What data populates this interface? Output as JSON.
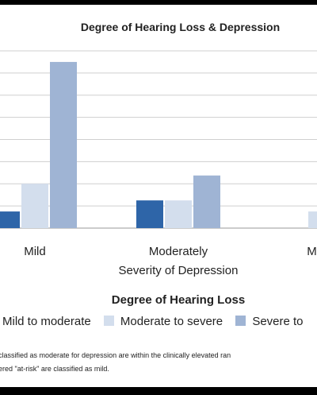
{
  "chart_data": {
    "type": "bar",
    "title": "Degree of Hearing Loss & Depression",
    "xlabel": "Severity of Depression",
    "ylabel": "",
    "categories": [
      "Mild",
      "Moderately",
      "Mode"
    ],
    "series": [
      {
        "name": "Mild to moderate",
        "color": "#2e65a8",
        "values": [
          3,
          5,
          null
        ]
      },
      {
        "name": "Moderate to severe",
        "color": "#d3deed",
        "values": [
          8,
          5,
          3
        ]
      },
      {
        "name": "Severe to",
        "color": "#9fb4d4",
        "values": [
          30,
          9.5,
          null
        ]
      }
    ],
    "ylim": [
      0,
      32
    ],
    "grid": true,
    "legend_title": "Degree of Hearing Loss",
    "legend_position": "bottom"
  },
  "footnote_lines": [
    "classified as moderate for depression are within the clinically elevated ran",
    "ered \"at-risk\" are classified as mild."
  ]
}
